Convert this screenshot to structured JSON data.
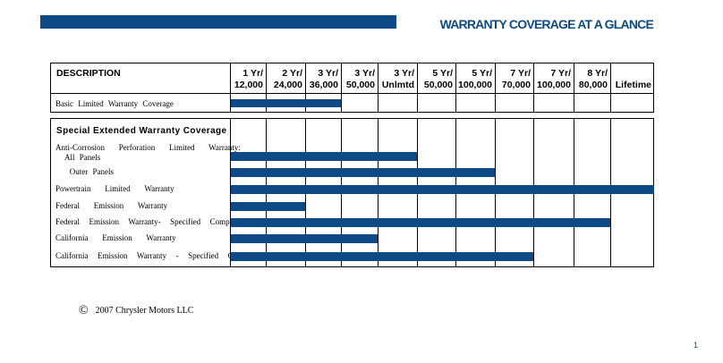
{
  "header": {
    "title": "WARRANTY COVERAGE AT A GLANCE"
  },
  "table": {
    "description_header": "DESCRIPTION",
    "columns": [
      {
        "line1": "1 Yr/",
        "line2": "12,000"
      },
      {
        "line1": "2 Yr/",
        "line2": "24,000"
      },
      {
        "line1": "3 Yr/",
        "line2": "36,000"
      },
      {
        "line1": "3 Yr/",
        "line2": "50,000"
      },
      {
        "line1": "3 Yr/",
        "line2": "Unlmtd"
      },
      {
        "line1": "5 Yr/",
        "line2": "50,000"
      },
      {
        "line1": "5 Yr/",
        "line2": "100,000"
      },
      {
        "line1": "7 Yr/",
        "line2": "70,000"
      },
      {
        "line1": "7 Yr/",
        "line2": "100,000"
      },
      {
        "line1": "8 Yr/",
        "line2": "80,000"
      },
      {
        "line1": "",
        "line2": "Lifetime"
      }
    ],
    "basic": {
      "label": "Basic  Limited  Warranty  Coverage",
      "coverage_columns": 3
    },
    "special": {
      "title": "Special  Extended  Warranty  Coverage",
      "rows": [
        {
          "label": "Anti-Corrosion   Perforation   Limited   Warranty:",
          "label2": "  All Panels",
          "coverage_columns": 5
        },
        {
          "label": "   Outer Panels",
          "coverage_columns": 7
        },
        {
          "label": "Powertrain   Limited   Warranty",
          "coverage_columns": 11
        },
        {
          "label": "Federal   Emission   Warranty",
          "coverage_columns": 2
        },
        {
          "label": "Federal  Emission  Warranty-  Specified  Comp.",
          "coverage_columns": 10
        },
        {
          "label": "California   Emission   Warranty",
          "coverage_columns": 4
        },
        {
          "label": "California  Emission  Warranty  -  Specified  Comp.",
          "coverage_columns": 8
        }
      ]
    }
  },
  "footer": {
    "copyright_symbol": "©",
    "copyright": "2007 Chrysler Motors LLC",
    "page_number": "1"
  },
  "colors": {
    "accent": "#0d4a86"
  }
}
